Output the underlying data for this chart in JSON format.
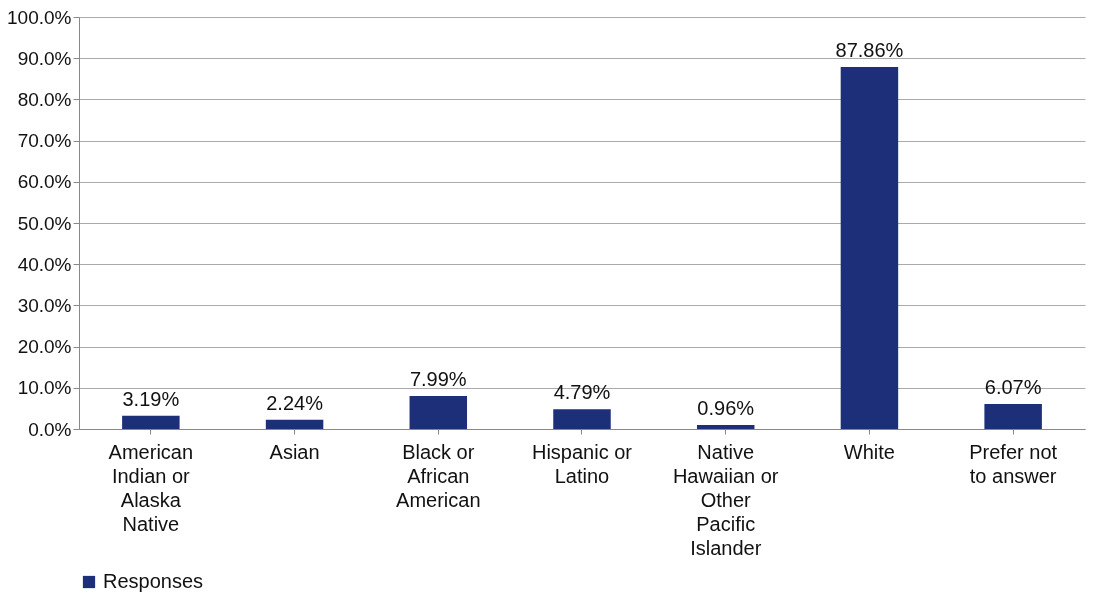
{
  "chart_data": {
    "type": "bar",
    "categories": [
      "American Indian or Alaska Native",
      "Asian",
      "Black or African American",
      "Hispanic or Latino",
      "Native Hawaiian or Other Pacific Islander",
      "White",
      "Prefer not to answer"
    ],
    "series": [
      {
        "name": "Responses",
        "color": "#1c2f78",
        "values": [
          3.19,
          2.24,
          7.99,
          4.79,
          0.96,
          87.86,
          6.07
        ],
        "value_labels": [
          "3.19%",
          "2.24%",
          "7.99%",
          "4.79%",
          "0.96%",
          "87.86%",
          "6.07%"
        ]
      }
    ],
    "ylim": [
      0,
      100
    ],
    "yticks": [
      {
        "value": 0,
        "label": "0.0%"
      },
      {
        "value": 10,
        "label": "10.0%"
      },
      {
        "value": 20,
        "label": "20.0%"
      },
      {
        "value": 30,
        "label": "30.0%"
      },
      {
        "value": 40,
        "label": "40.0%"
      },
      {
        "value": 50,
        "label": "50.0%"
      },
      {
        "value": 60,
        "label": "60.0%"
      },
      {
        "value": 70,
        "label": "70.0%"
      },
      {
        "value": 80,
        "label": "80.0%"
      },
      {
        "value": 90,
        "label": "90.0%"
      },
      {
        "value": 100,
        "label": "100.0%"
      }
    ],
    "grid": "y",
    "legend": "bottom"
  }
}
